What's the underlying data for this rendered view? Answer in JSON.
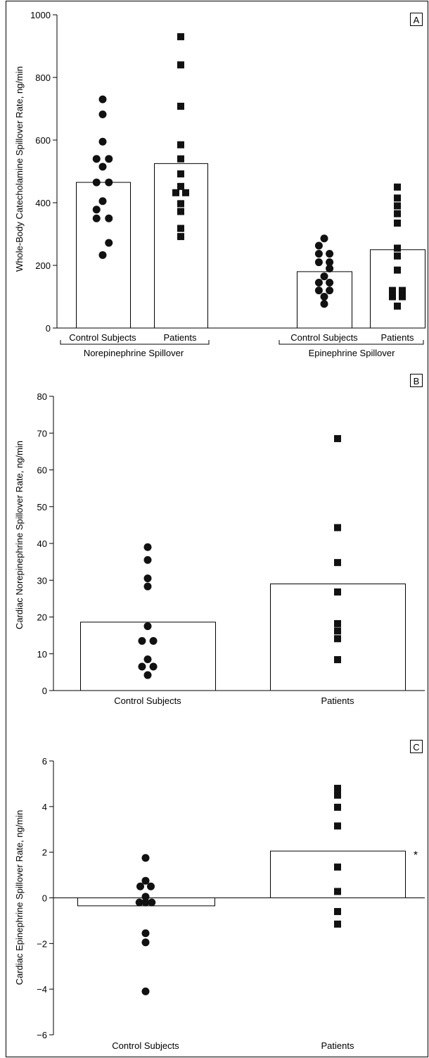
{
  "chart_data": [
    {
      "panel_label": "A",
      "type": "bar",
      "ylabel": "Whole-Body Catecholamine Spillover Rate, ng/min",
      "ylim": [
        0,
        1000
      ],
      "yticks": [
        0,
        200,
        400,
        600,
        800,
        1000
      ],
      "groups": [
        {
          "name": "Norepinephrine Spillover",
          "categories": [
            "Control Subjects",
            "Patients"
          ],
          "means": [
            465,
            525
          ],
          "points": [
            [
              730,
              682,
              595,
              540,
              540,
              515,
              465,
              465,
              405,
              378,
              350,
              350,
              272,
              233
            ],
            [
              930,
              840,
              708,
              585,
              540,
              492,
              452,
              432,
              432,
              397,
              372,
              318,
              292
            ]
          ]
        },
        {
          "name": "Epinephrine Spillover",
          "categories": [
            "Control Subjects",
            "Patients"
          ],
          "means": [
            180,
            250
          ],
          "points": [
            [
              286,
              263,
              237,
              237,
              210,
              210,
              190,
              165,
              145,
              145,
              120,
              120,
              100,
              77
            ],
            [
              450,
              415,
              390,
              365,
              335,
              255,
              230,
              185,
              120,
              120,
              100,
              100,
              70
            ]
          ]
        }
      ],
      "legend": "none",
      "grid": false
    },
    {
      "panel_label": "B",
      "type": "bar",
      "ylabel": "Cardiac Norepinephrine Spillover Rate, ng/min",
      "ylim": [
        0,
        80
      ],
      "yticks": [
        0,
        10,
        20,
        30,
        40,
        50,
        60,
        70,
        80
      ],
      "categories": [
        "Control Subjects",
        "Patients"
      ],
      "means": [
        18.6,
        29.0
      ],
      "points": [
        [
          39.0,
          35.5,
          30.5,
          28.3,
          17.5,
          13.5,
          13.5,
          8.5,
          6.5,
          6.5,
          4.2
        ],
        [
          68.5,
          44.3,
          34.8,
          26.8,
          18.2,
          16.2,
          14.1,
          8.4
        ]
      ],
      "legend": "none",
      "grid": false
    },
    {
      "panel_label": "C",
      "type": "bar",
      "ylabel": "Cardiac Epinephrine Spillover Rate, ng/min",
      "ylim": [
        -6,
        6
      ],
      "yticks": [
        -6,
        -4,
        -2,
        0,
        2,
        4,
        6
      ],
      "categories": [
        "Control Subjects",
        "Patients"
      ],
      "means": [
        -0.35,
        2.05
      ],
      "points": [
        [
          1.75,
          0.75,
          0.5,
          0.5,
          0.05,
          -0.2,
          -0.2,
          -0.2,
          -1.55,
          -1.95,
          -4.1
        ],
        [
          4.8,
          4.5,
          3.97,
          3.15,
          1.35,
          0.28,
          -0.6,
          -1.15
        ]
      ],
      "annotation": "*",
      "legend": "none",
      "grid": false
    }
  ]
}
